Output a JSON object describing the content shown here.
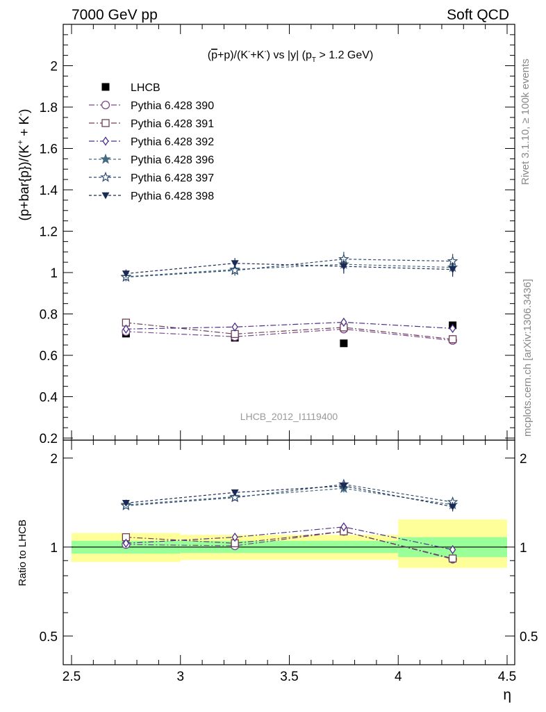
{
  "header": {
    "left": "7000 GeV pp",
    "right": "Soft QCD"
  },
  "side_labels": {
    "rivet": "Rivet 3.1.10, ≥ 100k events",
    "mcplots": "mcplots.cern.ch [arXiv:1306.3436]"
  },
  "colors": {
    "lhcb": "#000000",
    "band_inner": "#99ff99",
    "band_outer": "#ffff99"
  },
  "chart_data": [
    {
      "id": "main",
      "type": "scatter",
      "title": "(p̅+p)/(K⁻+K⁻) vs |y| (p_T > 1.2 GeV)",
      "title_parts": {
        "prefix": "(",
        "pbar": "p",
        "rest1": "+p)/(K",
        "sup1": "-",
        "rest2": "+K",
        "sup2": "-",
        "rest3": ") vs |y| (p",
        "sub": "T",
        "rest4": " > 1.2 GeV)"
      },
      "ylabel": "(p+bar{p})/(K⁺ + K⁻)",
      "ylabel_parts": {
        "a": "(p+bar{p})/(K",
        "sup1": "+",
        "b": " + K",
        "sup2": "-",
        "c": ")"
      },
      "watermark": "LHCB_2012_I1119400",
      "xlim": [
        2.5,
        4.5
      ],
      "ylim": [
        0.19,
        2.2
      ],
      "yticks": [
        0.2,
        0.4,
        0.6,
        0.8,
        1.0,
        1.2,
        1.4,
        1.6,
        1.8,
        2.0
      ],
      "ytick_labels": [
        "0.2",
        "0.4",
        "0.6",
        "0.8",
        "1",
        "1.2",
        "1.4",
        "1.6",
        "1.8",
        "2"
      ],
      "legend_position": "top-left",
      "x": [
        2.75,
        3.25,
        3.75,
        4.25
      ],
      "series": [
        {
          "name": "LHCB",
          "color": "#000000",
          "marker": "filled-square",
          "dash": "none",
          "values": [
            0.705,
            0.685,
            0.658,
            0.745
          ],
          "errors": [
            0.0,
            0.0,
            0.0,
            0.0
          ]
        },
        {
          "name": "Pythia 6.428 390",
          "color": "#7a4a8c",
          "marker": "open-circle",
          "dash": "8,3,2,3",
          "values": [
            0.715,
            0.69,
            0.727,
            0.672
          ],
          "errors": [
            0.015,
            0.015,
            0.02,
            0.02
          ]
        },
        {
          "name": "Pythia 6.428 391",
          "color": "#6e3e56",
          "marker": "open-square",
          "dash": "8,3,2,3",
          "values": [
            0.758,
            0.703,
            0.735,
            0.678
          ],
          "errors": [
            0.015,
            0.015,
            0.02,
            0.02
          ]
        },
        {
          "name": "Pythia 6.428 392",
          "color": "#4b2f8a",
          "marker": "open-diamond",
          "dash": "8,3,2,3",
          "values": [
            0.727,
            0.737,
            0.76,
            0.73
          ],
          "errors": [
            0.015,
            0.015,
            0.02,
            0.02
          ]
        },
        {
          "name": "Pythia 6.428 396",
          "color": "#456a80",
          "marker": "filled-star",
          "dash": "4,3",
          "values": [
            0.98,
            1.015,
            1.04,
            1.025
          ],
          "errors": [
            0.02,
            0.025,
            0.035,
            0.035
          ]
        },
        {
          "name": "Pythia 6.428 397",
          "color": "#2c4a6e",
          "marker": "open-star",
          "dash": "4,3",
          "values": [
            0.978,
            1.01,
            1.065,
            1.055
          ],
          "errors": [
            0.02,
            0.025,
            0.035,
            0.035
          ]
        },
        {
          "name": "Pythia 6.428 398",
          "color": "#1b2a55",
          "marker": "filled-triangle-down",
          "dash": "4,3",
          "values": [
            0.995,
            1.045,
            1.03,
            1.015
          ],
          "errors": [
            0.02,
            0.025,
            0.035,
            0.035
          ]
        }
      ]
    },
    {
      "id": "ratio",
      "type": "scatter",
      "ylabel": "Ratio to LHCB",
      "xlabel": "η",
      "xlim": [
        2.5,
        4.5
      ],
      "ylim": [
        0.4,
        2.3
      ],
      "scale": "log",
      "xticks": [
        2.5,
        3.0,
        3.5,
        4.0,
        4.5
      ],
      "xtick_labels": [
        "2.5",
        "3",
        "3.5",
        "4",
        "4.5"
      ],
      "yticks": [
        0.5,
        1,
        2
      ],
      "ytick_labels": [
        "0.5",
        "1",
        "2"
      ],
      "bands": [
        {
          "x0": 2.5,
          "x1": 3.0,
          "inner": [
            0.95,
            1.05
          ],
          "outer": [
            0.89,
            1.115
          ]
        },
        {
          "x0": 3.0,
          "x1": 4.0,
          "inner": [
            0.955,
            1.05
          ],
          "outer": [
            0.905,
            1.1
          ]
        },
        {
          "x0": 4.0,
          "x1": 4.5,
          "inner": [
            0.925,
            1.08
          ],
          "outer": [
            0.85,
            1.24
          ]
        }
      ],
      "x": [
        2.75,
        3.25,
        3.75,
        4.25
      ],
      "series": [
        {
          "name": "Pythia 6.428 390",
          "values": [
            1.02,
            1.01,
            1.13,
            0.91
          ],
          "errors": [
            0.02,
            0.02,
            0.03,
            0.03
          ]
        },
        {
          "name": "Pythia 6.428 391",
          "values": [
            1.08,
            1.03,
            1.13,
            0.915
          ],
          "errors": [
            0.02,
            0.02,
            0.03,
            0.03
          ]
        },
        {
          "name": "Pythia 6.428 392",
          "values": [
            1.03,
            1.08,
            1.17,
            0.98
          ],
          "errors": [
            0.02,
            0.02,
            0.03,
            0.03
          ]
        },
        {
          "name": "Pythia 6.428 396",
          "values": [
            1.39,
            1.48,
            1.58,
            1.39
          ],
          "errors": [
            0.03,
            0.035,
            0.05,
            0.05
          ]
        },
        {
          "name": "Pythia 6.428 397",
          "values": [
            1.38,
            1.47,
            1.63,
            1.42
          ],
          "errors": [
            0.03,
            0.035,
            0.05,
            0.05
          ]
        },
        {
          "name": "Pythia 6.428 398",
          "values": [
            1.41,
            1.53,
            1.61,
            1.37
          ],
          "errors": [
            0.03,
            0.035,
            0.05,
            0.05
          ]
        }
      ]
    }
  ]
}
